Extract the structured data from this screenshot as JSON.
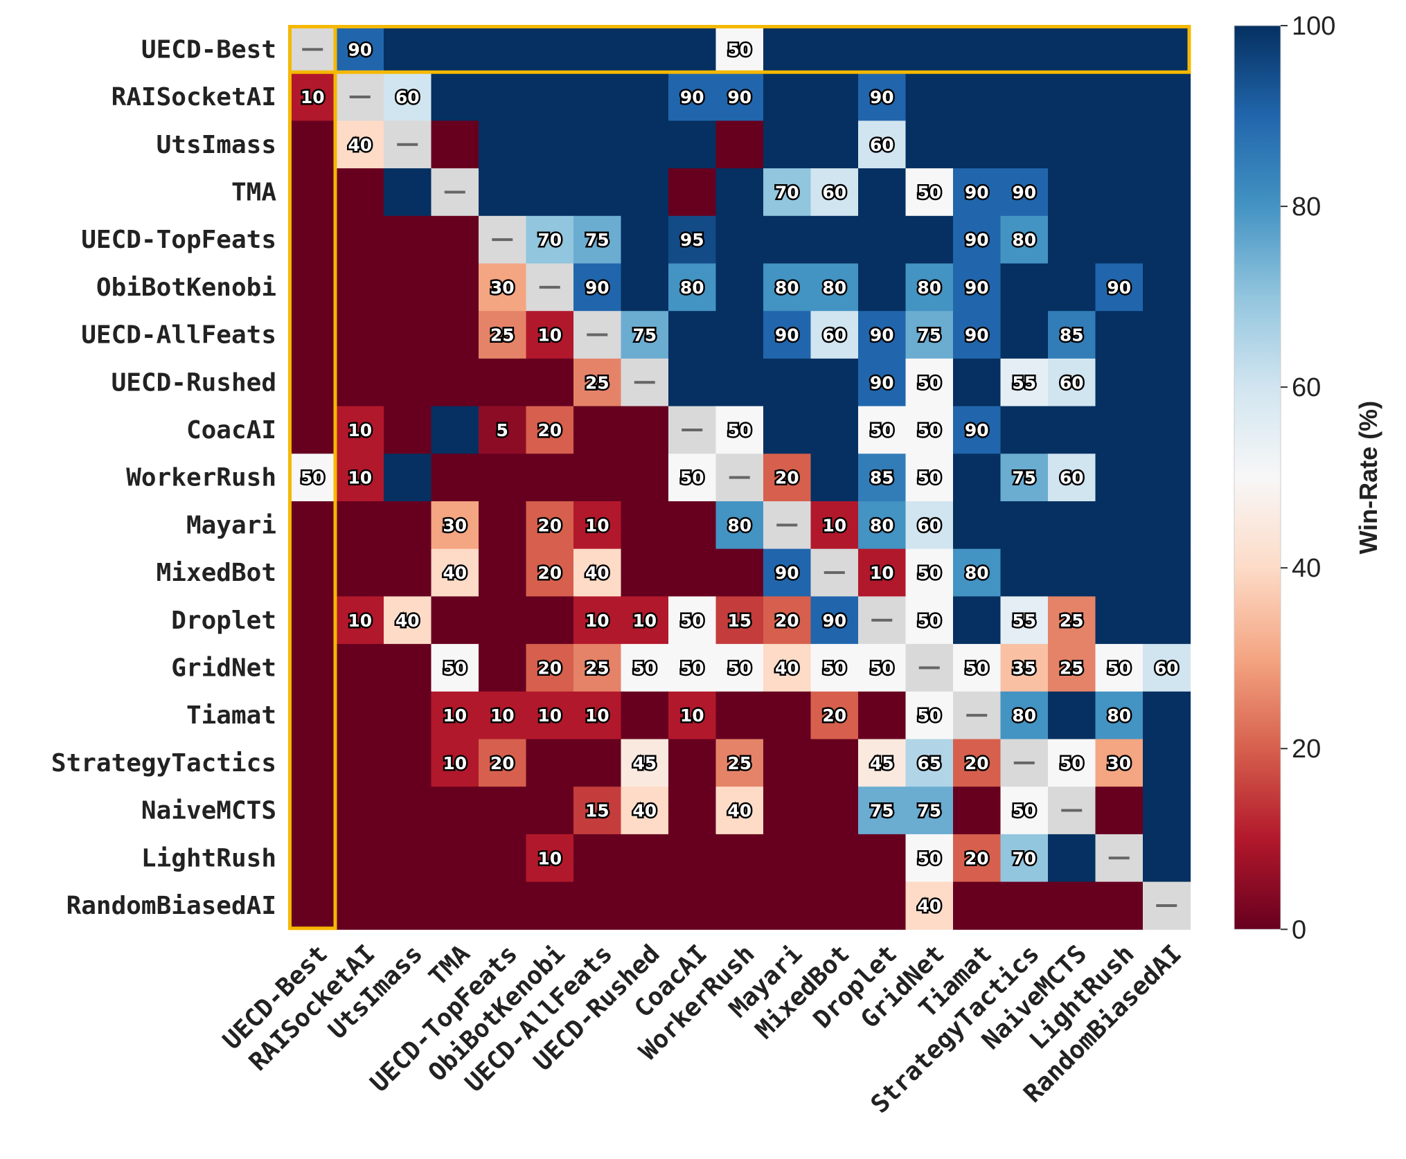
{
  "chart_data": {
    "type": "heatmap",
    "title": "",
    "xlabel": "",
    "ylabel": "",
    "rows": [
      "UECD-Best",
      "RAISocketAI",
      "UtsImass",
      "TMA",
      "UECD-TopFeats",
      "ObiBotKenobi",
      "UECD-AllFeats",
      "UECD-Rushed",
      "CoacAI",
      "WorkerRush",
      "Mayari",
      "MixedBot",
      "Droplet",
      "GridNet",
      "Tiamat",
      "StrategyTactics",
      "NaiveMCTS",
      "LightRush",
      "RandomBiasedAI"
    ],
    "columns": [
      "UECD-Best",
      "RAISocketAI",
      "UtsImass",
      "TMA",
      "UECD-TopFeats",
      "ObiBotKenobi",
      "UECD-AllFeats",
      "UECD-Rushed",
      "CoacAI",
      "WorkerRush",
      "Mayari",
      "MixedBot",
      "Droplet",
      "GridNet",
      "Tiamat",
      "StrategyTactics",
      "NaiveMCTS",
      "LightRush",
      "RandomBiasedAI"
    ],
    "values": [
      [
        null,
        90,
        100,
        100,
        100,
        100,
        100,
        100,
        100,
        50,
        100,
        100,
        100,
        100,
        100,
        100,
        100,
        100,
        100
      ],
      [
        10,
        null,
        60,
        100,
        100,
        100,
        100,
        100,
        90,
        90,
        100,
        100,
        90,
        100,
        100,
        100,
        100,
        100,
        100
      ],
      [
        0,
        40,
        null,
        0,
        100,
        100,
        100,
        100,
        100,
        0,
        100,
        100,
        60,
        100,
        100,
        100,
        100,
        100,
        100
      ],
      [
        0,
        0,
        100,
        null,
        100,
        100,
        100,
        100,
        0,
        100,
        70,
        60,
        100,
        50,
        90,
        90,
        100,
        100,
        100
      ],
      [
        0,
        0,
        0,
        0,
        null,
        70,
        75,
        100,
        95,
        100,
        100,
        100,
        100,
        100,
        90,
        80,
        100,
        100,
        100
      ],
      [
        0,
        0,
        0,
        0,
        30,
        null,
        90,
        100,
        80,
        100,
        80,
        80,
        100,
        80,
        90,
        100,
        100,
        90,
        100
      ],
      [
        0,
        0,
        0,
        0,
        25,
        10,
        null,
        75,
        100,
        100,
        90,
        60,
        90,
        75,
        90,
        100,
        85,
        100,
        100
      ],
      [
        0,
        0,
        0,
        0,
        0,
        0,
        25,
        null,
        100,
        100,
        100,
        100,
        90,
        50,
        100,
        55,
        60,
        100,
        100
      ],
      [
        0,
        10,
        0,
        100,
        5,
        20,
        0,
        0,
        null,
        50,
        100,
        100,
        50,
        50,
        90,
        100,
        100,
        100,
        100
      ],
      [
        50,
        10,
        100,
        0,
        0,
        0,
        0,
        0,
        50,
        null,
        20,
        100,
        85,
        50,
        100,
        75,
        60,
        100,
        100
      ],
      [
        0,
        0,
        0,
        30,
        0,
        20,
        10,
        0,
        0,
        80,
        null,
        10,
        80,
        60,
        100,
        100,
        100,
        100,
        100
      ],
      [
        0,
        0,
        0,
        40,
        0,
        20,
        40,
        0,
        0,
        0,
        90,
        null,
        10,
        50,
        80,
        100,
        100,
        100,
        100
      ],
      [
        0,
        10,
        40,
        0,
        0,
        0,
        10,
        10,
        50,
        15,
        20,
        90,
        null,
        50,
        100,
        55,
        25,
        100,
        100
      ],
      [
        0,
        0,
        0,
        50,
        0,
        20,
        25,
        50,
        50,
        50,
        40,
        50,
        50,
        null,
        50,
        35,
        25,
        50,
        60
      ],
      [
        0,
        0,
        0,
        10,
        10,
        10,
        10,
        0,
        10,
        0,
        0,
        20,
        0,
        50,
        null,
        80,
        100,
        80,
        100
      ],
      [
        0,
        0,
        0,
        10,
        20,
        0,
        0,
        45,
        0,
        25,
        0,
        0,
        45,
        65,
        20,
        null,
        50,
        30,
        100
      ],
      [
        0,
        0,
        0,
        0,
        0,
        0,
        15,
        40,
        0,
        40,
        0,
        0,
        75,
        75,
        0,
        50,
        null,
        0,
        100
      ],
      [
        0,
        0,
        0,
        0,
        0,
        10,
        0,
        0,
        0,
        0,
        0,
        0,
        0,
        50,
        20,
        70,
        100,
        null,
        100
      ],
      [
        0,
        0,
        0,
        0,
        0,
        0,
        0,
        0,
        0,
        0,
        0,
        0,
        0,
        40,
        0,
        0,
        0,
        0,
        null
      ]
    ],
    "annotations": [
      [
        "—",
        "90",
        "",
        "",
        "",
        "",
        "",
        "",
        "",
        "50",
        "",
        "",
        "",
        "",
        "",
        "",
        "",
        "",
        ""
      ],
      [
        "10",
        "—",
        "60",
        "",
        "",
        "",
        "",
        "",
        "90",
        "90",
        "",
        "",
        "90",
        "",
        "",
        "",
        "",
        "",
        ""
      ],
      [
        "",
        "40",
        "—",
        "",
        "",
        "",
        "",
        "",
        "",
        "",
        "",
        "",
        "60",
        "",
        "",
        "",
        "",
        "",
        ""
      ],
      [
        "",
        "",
        "",
        "—",
        "",
        "",
        "",
        "",
        "",
        "",
        "70",
        "60",
        "",
        "50",
        "90",
        "90",
        "",
        "",
        ""
      ],
      [
        "",
        "",
        "",
        "",
        "—",
        "70",
        "75",
        "",
        "95",
        "",
        "",
        "",
        "",
        "",
        "90",
        "80",
        "",
        "",
        ""
      ],
      [
        "",
        "",
        "",
        "",
        "30",
        "—",
        "90",
        "",
        "80",
        "",
        "80",
        "80",
        "",
        "80",
        "90",
        "",
        "",
        "90",
        ""
      ],
      [
        "",
        "",
        "",
        "",
        "25",
        "10",
        "—",
        "75",
        "",
        "",
        "90",
        "60",
        "90",
        "75",
        "90",
        "",
        "85",
        "",
        ""
      ],
      [
        "",
        "",
        "",
        "",
        "",
        "",
        "25",
        "—",
        "",
        "",
        "",
        "",
        "90",
        "50",
        "",
        "55",
        "60",
        "",
        ""
      ],
      [
        "",
        "10",
        "",
        "",
        "5",
        "20",
        "",
        "",
        "—",
        "50",
        "",
        "",
        "50",
        "50",
        "90",
        "",
        "",
        "",
        ""
      ],
      [
        "50",
        "10",
        "",
        "",
        "",
        "",
        "",
        "",
        "50",
        "—",
        "20",
        "",
        "85",
        "50",
        "",
        "75",
        "60",
        "",
        ""
      ],
      [
        "",
        "",
        "",
        "30",
        "",
        "20",
        "10",
        "",
        "",
        "80",
        "—",
        "10",
        "80",
        "60",
        "",
        "",
        "",
        "",
        ""
      ],
      [
        "",
        "",
        "",
        "40",
        "",
        "20",
        "40",
        "",
        "",
        "",
        "90",
        "—",
        "10",
        "50",
        "80",
        "",
        "",
        "",
        ""
      ],
      [
        "",
        "10",
        "40",
        "",
        "",
        "",
        "10",
        "10",
        "50",
        "15",
        "20",
        "90",
        "—",
        "50",
        "",
        "55",
        "25",
        "",
        ""
      ],
      [
        "",
        "",
        "",
        "50",
        "",
        "20",
        "25",
        "50",
        "50",
        "50",
        "40",
        "50",
        "50",
        "—",
        "50",
        "35",
        "25",
        "50",
        "60"
      ],
      [
        "",
        "",
        "",
        "10",
        "10",
        "10",
        "10",
        "",
        "10",
        "",
        "",
        "20",
        "",
        "50",
        "—",
        "80",
        "",
        "80",
        ""
      ],
      [
        "",
        "",
        "",
        "10",
        "20",
        "",
        "",
        "45",
        "",
        "25",
        "",
        "",
        "45",
        "65",
        "20",
        "—",
        "50",
        "30",
        ""
      ],
      [
        "",
        "",
        "",
        "",
        "",
        "",
        "15",
        "40",
        "",
        "40",
        "",
        "",
        "75",
        "75",
        "",
        "50",
        "—",
        "",
        ""
      ],
      [
        "",
        "",
        "",
        "",
        "",
        "10",
        "",
        "",
        "",
        "",
        "",
        "",
        "",
        "50",
        "20",
        "70",
        "",
        "—",
        ""
      ],
      [
        "",
        "",
        "",
        "",
        "",
        "",
        "",
        "",
        "",
        "",
        "",
        "",
        "",
        "40",
        "",
        "",
        "",
        "",
        "—"
      ]
    ],
    "diagonal_marker": "—",
    "colorbar": {
      "label": "Win-Rate (%)",
      "range": [
        0,
        100
      ],
      "ticks": [
        "0",
        "20",
        "40",
        "60",
        "80",
        "100"
      ],
      "colormap": "RdBu"
    },
    "highlight": {
      "row": "UECD-Best",
      "column": "UECD-Best",
      "color": "#F5B800"
    },
    "grid": false
  }
}
